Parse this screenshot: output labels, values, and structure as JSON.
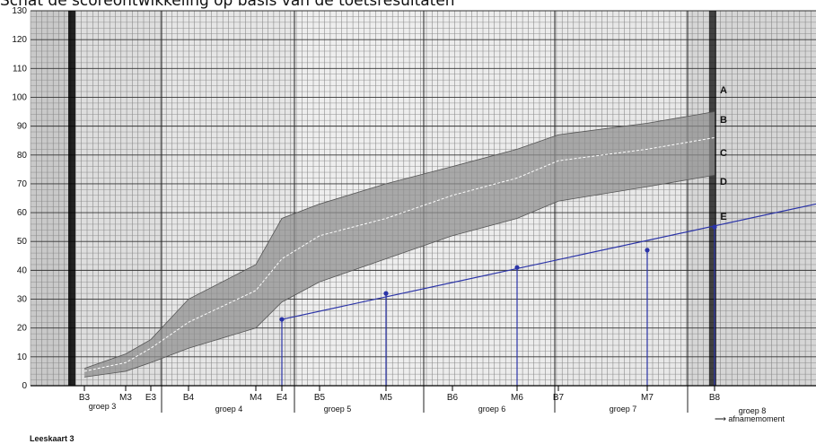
{
  "top_caption": "Schat de scoreontwikkeling op basis van de toetsresultaten",
  "footer_title": "Leeskaart 3",
  "x_axis_caption": "afnamemoment",
  "chart_data": {
    "type": "area",
    "title": "",
    "xlabel": "afnamemoment",
    "ylabel": "",
    "ylim": [
      0,
      130
    ],
    "yticks": [
      0,
      10,
      20,
      30,
      40,
      50,
      60,
      70,
      80,
      90,
      100,
      110,
      120,
      130
    ],
    "grid": true,
    "categories": [
      "B3",
      "M3",
      "E3",
      "B4",
      "M4",
      "E4",
      "B5",
      "M5",
      "B6",
      "M6",
      "B7",
      "M7",
      "B8"
    ],
    "groups": [
      {
        "label": "groep 3",
        "from": "B3",
        "to": "E3"
      },
      {
        "label": "groep 4",
        "from": "B4",
        "to": "E4"
      },
      {
        "label": "groep 5",
        "from": "B5",
        "to": "M5"
      },
      {
        "label": "groep 6",
        "from": "B6",
        "to": "M6"
      },
      {
        "label": "groep 7",
        "from": "B7",
        "to": "M7"
      },
      {
        "label": "groep 8",
        "from": "B8",
        "to": "B8"
      }
    ],
    "band_labels": [
      "A",
      "B",
      "C",
      "D",
      "E"
    ],
    "series": [
      {
        "values": [
          6,
          11,
          16,
          30,
          42,
          58,
          63,
          70,
          76,
          82,
          87,
          91,
          95
        ]
      },
      {
        "values": [
          5,
          8,
          13,
          22,
          33,
          44,
          52,
          58,
          66,
          72,
          78,
          82,
          86
        ]
      },
      {
        "values": [
          3,
          5,
          8,
          13,
          20,
          29,
          36,
          44,
          52,
          58,
          64,
          69,
          73
        ]
      }
    ],
    "pupil_scores": [
      {
        "x": "E4",
        "value": 23
      },
      {
        "x": "M5",
        "value": 32
      },
      {
        "x": "M6",
        "value": 41
      },
      {
        "x": "M7",
        "value": 47
      },
      {
        "x": "B8",
        "value": 55
      }
    ],
    "trend": {
      "from": "E4",
      "start": 23,
      "end": 63
    }
  }
}
